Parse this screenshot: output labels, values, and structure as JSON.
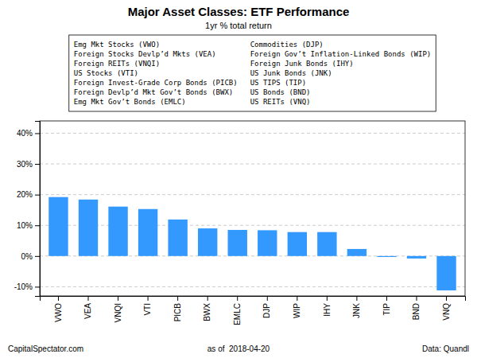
{
  "chart_data": {
    "type": "bar",
    "title": "Major Asset Classes: ETF Performance",
    "subtitle": "1yr % total return",
    "categories": [
      "VWO",
      "VEA",
      "VNQI",
      "VTI",
      "PICB",
      "BWX",
      "EMLC",
      "DJP",
      "WIP",
      "IHY",
      "JNK",
      "TIP",
      "BND",
      "VNQ"
    ],
    "values": [
      19.2,
      18.4,
      16.1,
      15.3,
      11.9,
      9.0,
      8.5,
      8.4,
      7.8,
      7.8,
      2.3,
      -0.3,
      -0.8,
      -11.2
    ],
    "color": "#3399FF",
    "ylim": [
      -13,
      44
    ],
    "yticks": [
      {
        "value": -10,
        "label": "-10%"
      },
      {
        "value": 0,
        "label": "0%"
      },
      {
        "value": 10,
        "label": "10%"
      },
      {
        "value": 20,
        "label": "20%"
      },
      {
        "value": 30,
        "label": "30%"
      },
      {
        "value": 40,
        "label": "40%"
      }
    ],
    "grid": true,
    "annotations": {
      "key": [
        [
          "Emg Mkt Stocks (VWO)",
          "Foreign Stocks Devlp’d Mkts (VEA)",
          "Foreign REITs (VNQI)",
          "US Stocks (VTI)",
          "Foreign Invest-Grade Corp Bonds (PICB)",
          "Foreign Devlp’d Mkt Gov’t Bonds (BWX)",
          "Emg Mkt Gov’t Bonds (EMLC)"
        ],
        [
          "Commodities (DJP)",
          "Foreign Gov’t Inflation-Linked Bonds (WIP)",
          "Foreign Junk Bonds (IHY)",
          "US Junk Bonds (JNK)",
          "US TIPS (TIP)",
          "US Bonds (BND)",
          "US REITs (VNQ)"
        ]
      ],
      "footer": [
        "CapitalSpectator.com",
        "as of  2018-04-20",
        "Data: Quandl"
      ]
    }
  }
}
